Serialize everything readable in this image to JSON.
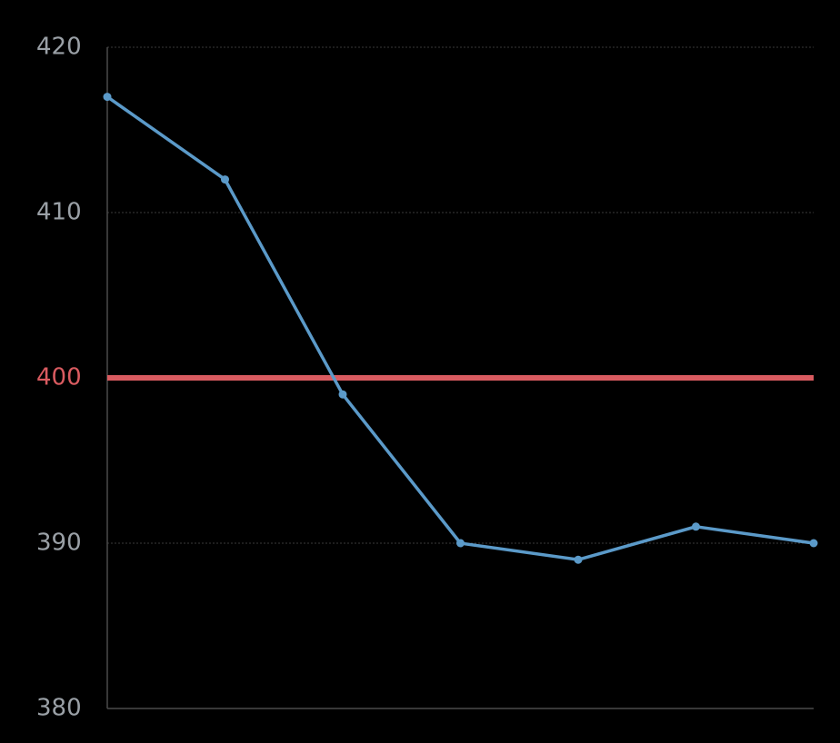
{
  "chart_data": {
    "type": "line",
    "title": "",
    "xlabel": "",
    "ylabel": "",
    "x": [
      1,
      2,
      3,
      4,
      5,
      6,
      7
    ],
    "series": [
      {
        "values": [
          417,
          412,
          399,
          390,
          389,
          391,
          390
        ],
        "color": "#5b9ac9"
      }
    ],
    "ylim": [
      380,
      420
    ],
    "yticks": [
      "380",
      "390",
      "410",
      "420"
    ],
    "reference_line": {
      "value": 400,
      "label": "400",
      "color": "#d95b60"
    },
    "grid": true,
    "colors": {
      "background": "#000000",
      "tick_label": "#9aa0a6",
      "grid": "#3a3a3a",
      "axis": "#4a4a4a"
    }
  }
}
